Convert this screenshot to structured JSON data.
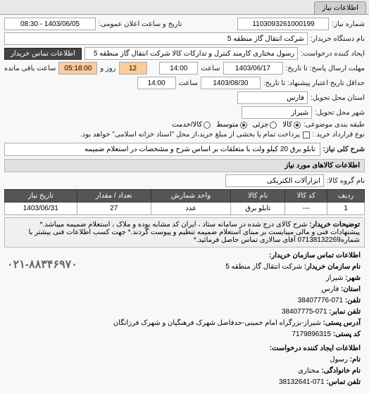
{
  "tab": {
    "title": "اطلاعات نیاز"
  },
  "header": {
    "req_no_lbl": "شماره نیاز:",
    "req_no": "1103093261000199",
    "pub_date_lbl": "تاریخ و ساعت اعلان عمومی:",
    "pub_date": "1403/06/05 - 08:30",
    "buyer_lbl": "نام دستگاه خریدار:",
    "buyer": "شرکت انتقال گاز منطقه 5",
    "creator_lbl": "ایجاد کننده درخواست:",
    "creator": "رسول   مختاری کارمند کنترل و تدارکات کالا شرکت انتقال گاز منطقه 5",
    "contact_btn": "اطلاعات تماس خریدار",
    "deadline_lbl": "مهلت ارسال پاسخ: تا تاریخ:",
    "deadline_date": "1403/06/17",
    "deadline_time_lbl": "ساعت",
    "deadline_time": "14:00",
    "days_lbl": "روز و",
    "days": "12",
    "remain_time": "05:18:00",
    "remain_lbl": "ساعت باقی مانده",
    "validity_lbl": "حداقل تاریخ اعتبار پیشنهاد: تا تاریخ:",
    "validity_date": "1403/08/30",
    "validity_time_lbl": "ساعت",
    "validity_time": "14:00",
    "loc_state_lbl": "استان محل تحویل:",
    "loc_state": "فارس",
    "loc_city_lbl": "شهر محل تحویل:",
    "loc_city": "شیراز",
    "budget_lbl": "طبقه بندی موضوعی:",
    "budget_opts": {
      "kala": "کالا",
      "jozei": "جزئی",
      "motavaset": "متوسط",
      "omde": "کالا/خدمت"
    },
    "contract_lbl": "نوع قرارداد خرید :",
    "contract_chk_lbl": "پرداخت تمام یا بخشی از مبلغ خرید،از محل \"اسناد خزانه اسلامی\" خواهد بود.",
    "title_lbl": "شرح کلی نیاز:",
    "title": "تابلو برق 20 کیلو ولت با متعلقات بر اساس شرح و مشخصات در استعلام ضمیمه"
  },
  "items_section": "اطلاعات کالاهای مورد نیاز",
  "group_lbl": "نام گروه کالا:",
  "group": "ابزارآلات الکتریکی",
  "table": {
    "cols": [
      "ردیف",
      "کد کالا",
      "نام کالا",
      "واحد شمارش",
      "تعداد / مقدار",
      "تاریخ نیاز"
    ],
    "rows": [
      [
        "1",
        "---",
        "تابلو برق",
        "عدد",
        "27",
        "1403/06/31"
      ]
    ]
  },
  "buyer_note_lbl": "توضیحات خریدار:",
  "buyer_note": "شرح کالای درج شده در سامانه ستاد ، ایران کد مشابه بوده و ملاک ، استعلام ضمیمه میباشد.* پیشنهادات فنی و مالی میبایست بر مبنای استعلام ضمیمه تنظیم و پیوست گردند.* جهت کسب اطلاعات فنی بیشتر با شماره07138132269 آقای سالاری تماس حاصل فرمائید.*",
  "contact": {
    "head": "اطلاعات تماس سازمان خریدار:",
    "org_lbl": "نام سازمان خریدار:",
    "org": "شرکت انتقال گاز منطقه 5",
    "city_lbl": "شهر:",
    "city": "شیراز",
    "state_lbl": "استان:",
    "state": "فارس",
    "tel_lbl": "تلفن:",
    "tel": "071-38407776",
    "fax_lbl": "تلفن نمابر:",
    "fax": "071-38407775",
    "addr_lbl": "آدرس پستی:",
    "addr": "شیراز-بزرگراه امام خمینی-حدفاصل شهرک فرهنگیان و شهرک فرزانگان",
    "zip_lbl": "کد پستی:",
    "zip": "7179896315",
    "req_creator_head": "اطلاعات ایجاد کننده درخواست:",
    "name_lbl": "نام:",
    "name": "رسول",
    "family_lbl": "نام خانوادگی:",
    "family": "مختاری",
    "phone_lbl": "تلفن تماس:",
    "phone": "071-38132641"
  },
  "big_phone": "۰۲۱-۸۸۳۴۶۹۷۰"
}
